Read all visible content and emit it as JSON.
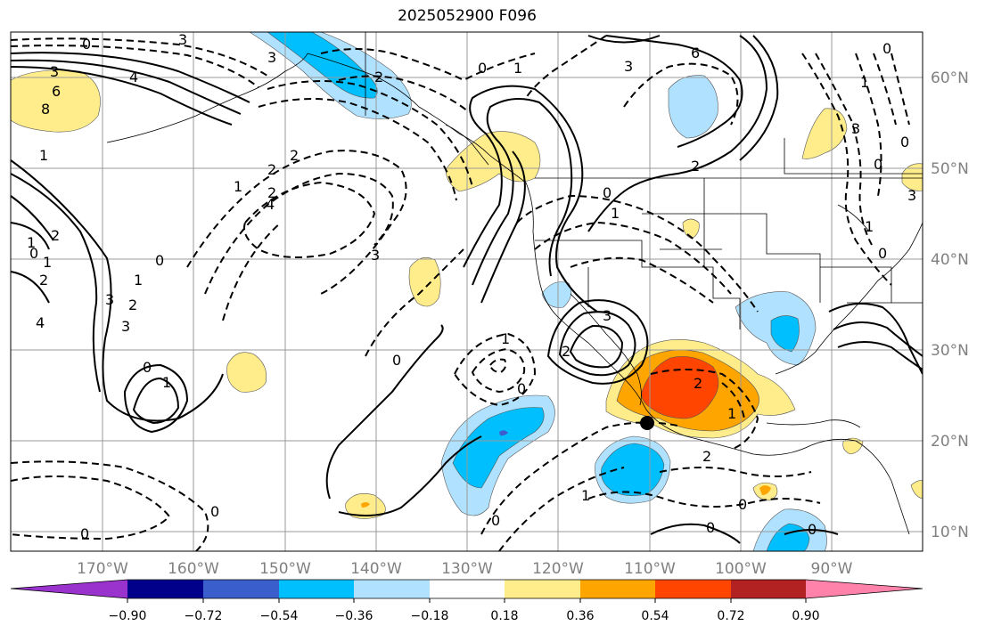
{
  "title": "2025052900 F096",
  "map": {
    "lon_labels": [
      "170°W",
      "160°W",
      "150°W",
      "140°W",
      "130°W",
      "120°W",
      "110°W",
      "100°W",
      "90°W"
    ],
    "lat_labels": [
      "60°N",
      "50°N",
      "40°N",
      "30°N",
      "20°N",
      "10°N"
    ],
    "contour_labels": [
      "0",
      "3",
      "6",
      "8",
      "4",
      "3",
      "2",
      "1",
      "0",
      "1",
      "2",
      "3",
      "4",
      "0",
      "1",
      "2",
      "3",
      "0",
      "1",
      "2",
      "3",
      "1",
      "0",
      "0",
      "1",
      "2",
      "1",
      "2",
      "0",
      "6",
      "3",
      "2",
      "1",
      "0",
      "0",
      "1",
      "2",
      "3",
      "4",
      "0",
      "1",
      "2",
      "3",
      "0",
      "0",
      "1",
      "2",
      "2",
      "0",
      "0",
      "0",
      "3",
      "3",
      "1",
      "1",
      "0",
      "0",
      "0"
    ],
    "marker": "storm-center-marker"
  },
  "colorbar": {
    "ticks": [
      "−0.90",
      "−0.72",
      "−0.54",
      "−0.36",
      "−0.18",
      "0.18",
      "0.36",
      "0.54",
      "0.72",
      "0.90"
    ],
    "colors": [
      "#9a32cd",
      "#00008b",
      "#3a5fcd",
      "#00bfff",
      "#b0e2ff",
      "#ffffff",
      "#ffec8b",
      "#ffa500",
      "#ff4500",
      "#b22222",
      "#ff82ab"
    ]
  }
}
